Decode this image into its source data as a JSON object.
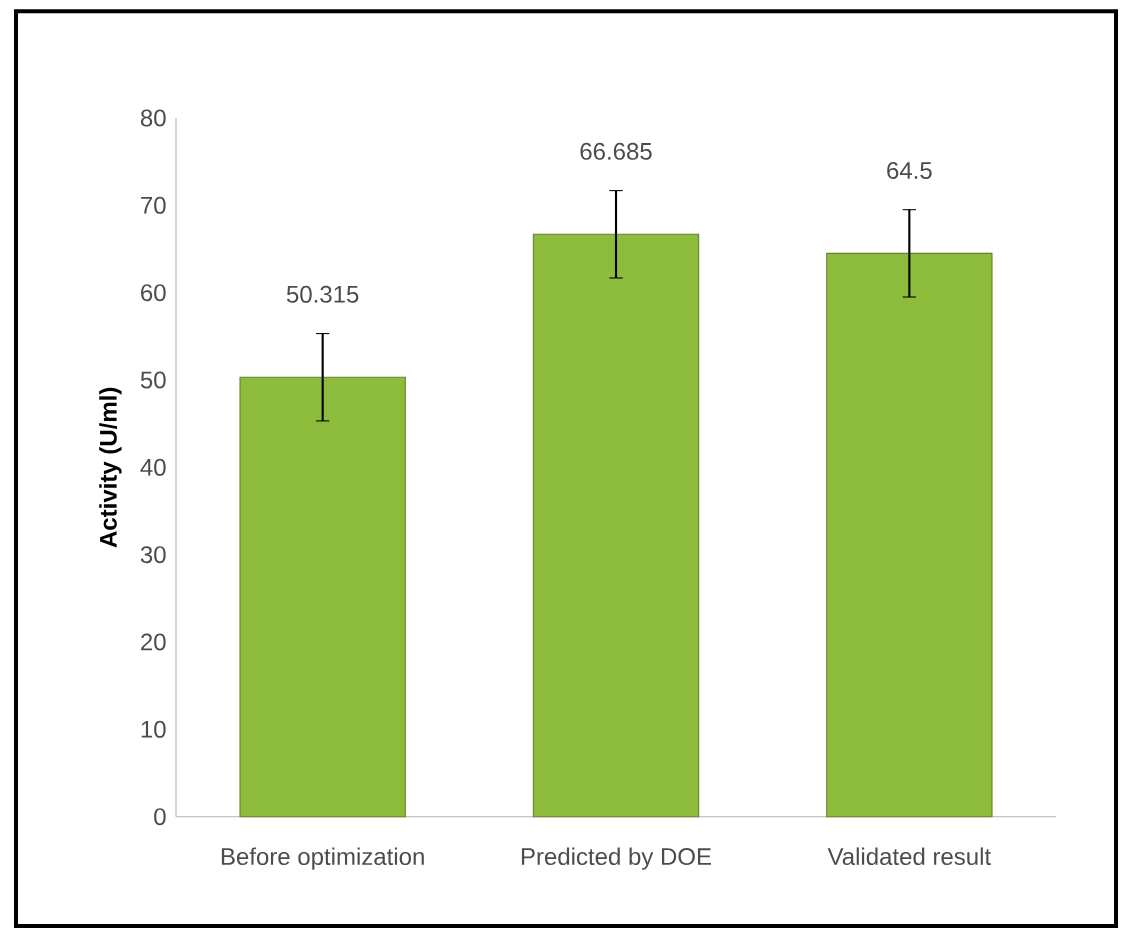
{
  "chart_data": {
    "type": "bar",
    "ylabel": "Activity (U/ml)",
    "categories": [
      "Before optimization",
      "Predicted by DOE",
      "Validated result"
    ],
    "values": [
      50.315,
      66.685,
      64.5
    ],
    "errors": [
      5,
      5,
      5
    ],
    "value_labels": [
      "50.315",
      "66.685",
      "64.5"
    ],
    "color": "#8dbb3c",
    "ylim": [
      0,
      80
    ],
    "yticks": [
      0,
      10,
      20,
      30,
      40,
      50,
      60,
      70,
      80
    ],
    "grid": false
  }
}
